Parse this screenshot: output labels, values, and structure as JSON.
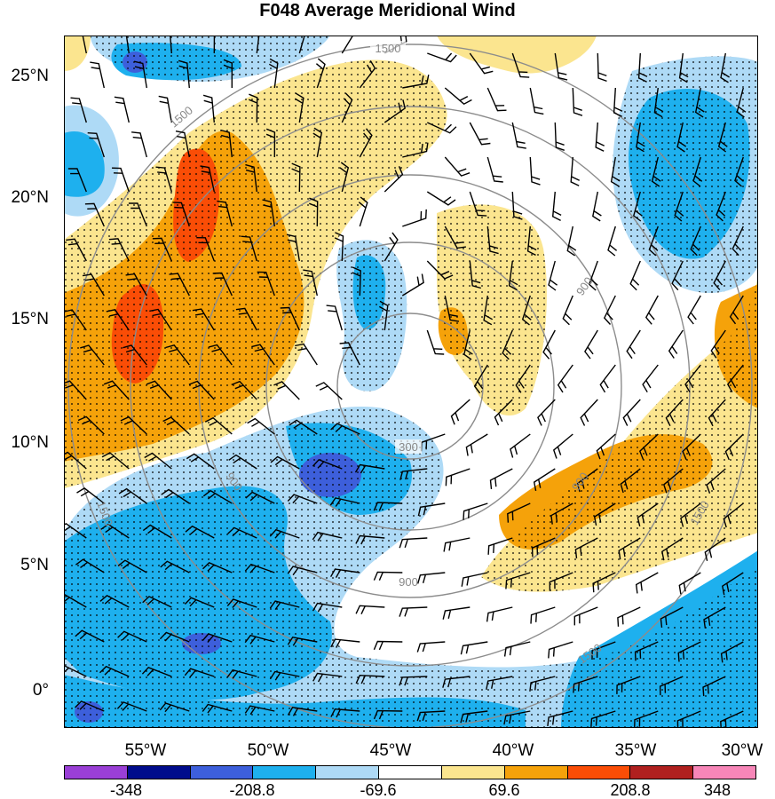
{
  "title": "F048 Average Meridional Wind",
  "map": {
    "lat_labels": [
      "25°N",
      "20°N",
      "15°N",
      "10°N",
      "5°N",
      "0°"
    ],
    "lon_labels": [
      "55°W",
      "50°W",
      "45°W",
      "40°W",
      "35°W",
      "30°W"
    ],
    "radius_ring_labels": [
      "300",
      "900",
      "900",
      "900",
      "900",
      "1500",
      "1500",
      "1500",
      "1500",
      "1500"
    ]
  },
  "colorbar": {
    "colors": [
      "#9a3fd6",
      "#000c8c",
      "#3d5fdb",
      "#1eb0ee",
      "#aedaf6",
      "#ffffff",
      "#fbe58f",
      "#f5a20a",
      "#fa4d06",
      "#b0201f",
      "#f786b8"
    ],
    "labels": [
      "-348",
      "-208.8",
      "-69.6",
      "69.6",
      "208.8",
      "348"
    ]
  }
}
